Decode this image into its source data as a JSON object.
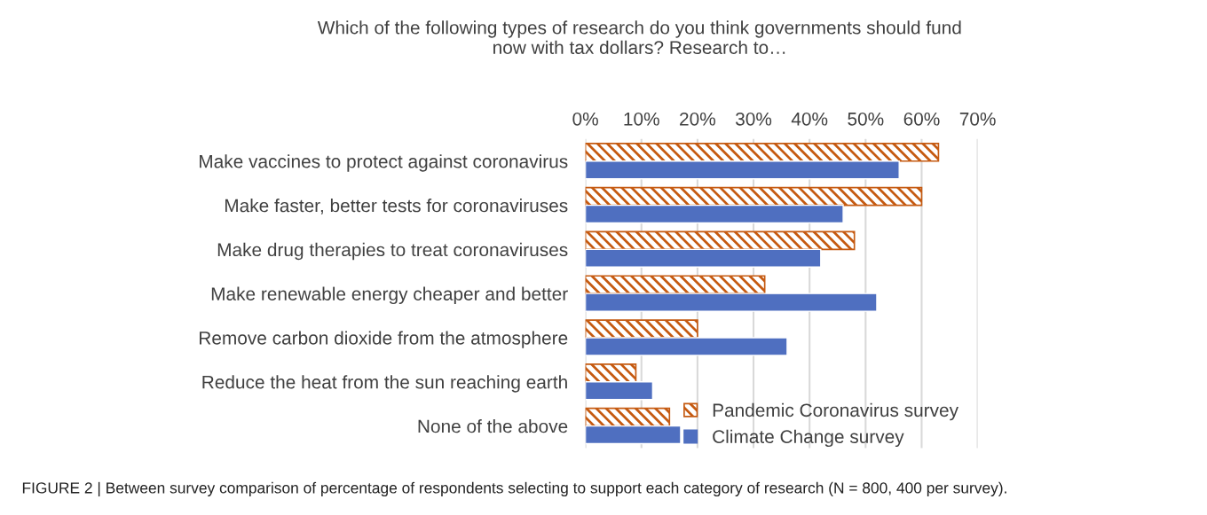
{
  "chart_data": {
    "type": "bar",
    "orientation": "horizontal",
    "title": "Which of the following types of research do you think governments should fund\nnow with tax dollars? Research to…",
    "categories": [
      "Make vaccines to protect against coronavirus",
      "Make faster, better tests for coronaviruses",
      "Make drug therapies to treat coronaviruses",
      "Make renewable energy cheaper and better",
      "Remove carbon dioxide from the atmosphere",
      "Reduce the heat from the sun reaching earth",
      "None of the above"
    ],
    "series": [
      {
        "name": "Pandemic Coronavirus survey",
        "color": "#c55a11",
        "values": [
          63,
          60,
          48,
          32,
          20,
          9,
          15
        ]
      },
      {
        "name": "Climate Change survey",
        "color": "#4f6fc0",
        "values": [
          56,
          46,
          42,
          52,
          36,
          12,
          17
        ]
      }
    ],
    "xlim": [
      0,
      70
    ],
    "xticks": [
      {
        "value": 0,
        "label": "0%"
      },
      {
        "value": 10,
        "label": "10%"
      },
      {
        "value": 20,
        "label": "20%"
      },
      {
        "value": 30,
        "label": "30%"
      },
      {
        "value": 40,
        "label": "40%"
      },
      {
        "value": 50,
        "label": "50%"
      },
      {
        "value": 60,
        "label": "60%"
      },
      {
        "value": 70,
        "label": "70%"
      }
    ],
    "grid": "x",
    "legend": "bottom right",
    "annotations": [
      "FIGURE 2 | Between survey comparison of percentage of respondents selecting to support each category of research (N = 800, 400 per survey)."
    ]
  }
}
